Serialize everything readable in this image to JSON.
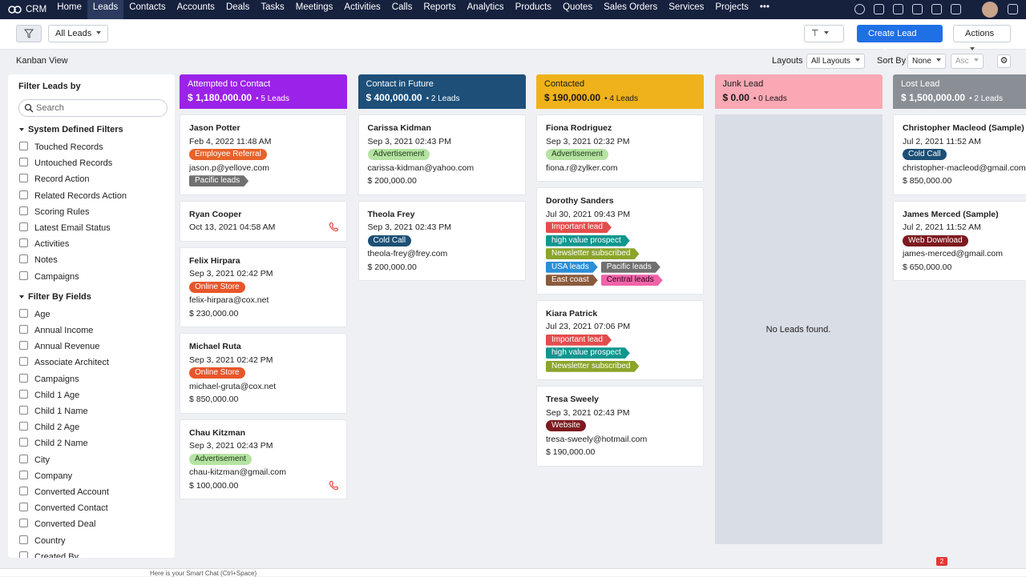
{
  "nav": {
    "brand": "CRM",
    "items": [
      "Home",
      "Leads",
      "Contacts",
      "Accounts",
      "Deals",
      "Tasks",
      "Meetings",
      "Activities",
      "Calls",
      "Reports",
      "Analytics",
      "Products",
      "Quotes",
      "Sales Orders",
      "Services",
      "Projects"
    ],
    "active": 1,
    "more": "•••"
  },
  "toolbar": {
    "view": "All Leads",
    "create": "Create Lead",
    "actions": "Actions"
  },
  "subbar": {
    "title": "Kanban View",
    "layouts_label": "Layouts",
    "layout": "All Layouts",
    "sort_label": "Sort By",
    "sort": "None",
    "order": "Asc"
  },
  "sidebar": {
    "title": "Filter Leads by",
    "search": "Search",
    "groups": [
      {
        "title": "System Defined Filters",
        "items": [
          "Touched Records",
          "Untouched Records",
          "Record Action",
          "Related Records Action",
          "Scoring Rules",
          "Latest Email Status",
          "Activities",
          "Notes",
          "Campaigns"
        ]
      },
      {
        "title": "Filter By Fields",
        "items": [
          "Age",
          "Annual Income",
          "Annual Revenue",
          "Associate Architect",
          "Campaigns",
          "Child 1 Age",
          "Child 1 Name",
          "Child 2 Age",
          "Child 2 Name",
          "City",
          "Company",
          "Converted Account",
          "Converted Contact",
          "Converted Deal",
          "Country",
          "Created By"
        ]
      }
    ]
  },
  "columns": [
    {
      "title": "Attempted to Contact",
      "amount": "$ 1,180,000.00",
      "count": "5 Leads",
      "color": "#9b22e8",
      "text_color": "#ffffff",
      "cards": [
        {
          "name": "Jason Potter",
          "rows": [
            "Feb 4, 2022 11:48 AM",
            [
              {
                "text": "Employee Referral",
                "color": "#e8622a",
                "shape": "pill"
              }
            ],
            "jason.p@yellove.com",
            [
              {
                "text": "Pacific leads",
                "color": "#707070",
                "shape": "arrow"
              }
            ]
          ]
        },
        {
          "name": "Ryan Cooper",
          "rows": [
            "Oct 13, 2021 04:58 AM"
          ],
          "phone": true
        },
        {
          "name": "Felix Hirpara",
          "rows": [
            "Sep 3, 2021 02:42 PM",
            [
              {
                "text": "Online Store",
                "color": "#e8562a",
                "shape": "pill"
              }
            ],
            "felix-hirpara@cox.net",
            "$ 230,000.00"
          ]
        },
        {
          "name": "Michael Ruta",
          "rows": [
            "Sep 3, 2021 02:42 PM",
            [
              {
                "text": "Online Store",
                "color": "#e8562a",
                "shape": "pill"
              }
            ],
            "michael-gruta@cox.net",
            "$ 850,000.00"
          ]
        },
        {
          "name": "Chau Kitzman",
          "rows": [
            "Sep 3, 2021 02:43 PM",
            [
              {
                "text": "Advertisement",
                "color": "#b5e3a2",
                "text_color": "#1f3a17",
                "shape": "pill"
              }
            ],
            "chau-kitzman@gmail.com",
            "$ 100,000.00"
          ],
          "phone": true
        }
      ]
    },
    {
      "title": "Contact in Future",
      "amount": "$ 400,000.00",
      "count": "2 Leads",
      "color": "#1d4f79",
      "text_color": "#ffffff",
      "cards": [
        {
          "name": "Carissa Kidman",
          "rows": [
            "Sep 3, 2021 02:43 PM",
            [
              {
                "text": "Advertisement",
                "color": "#b5e3a2",
                "text_color": "#1f3a17",
                "shape": "pill"
              }
            ],
            "carissa-kidman@yahoo.com",
            "$ 200,000.00"
          ]
        },
        {
          "name": "Theola Frey",
          "rows": [
            "Sep 3, 2021 02:43 PM",
            [
              {
                "text": "Cold Call",
                "color": "#1c4f75",
                "shape": "pill"
              }
            ],
            "theola-frey@frey.com",
            "$ 200,000.00"
          ]
        }
      ]
    },
    {
      "title": "Contacted",
      "amount": "$ 190,000.00",
      "count": "4 Leads",
      "color": "#efb21b",
      "text_color": "#1a1a1a",
      "cards": [
        {
          "name": "Fiona Rodriguez",
          "rows": [
            "Sep 3, 2021 02:32 PM",
            [
              {
                "text": "Advertisement",
                "color": "#b5e3a2",
                "text_color": "#1f3a17",
                "shape": "pill"
              }
            ],
            "fiona.r@zylker.com"
          ]
        },
        {
          "name": "Dorothy Sanders",
          "rows": [
            "Jul 30, 2021 09:43 PM",
            [
              {
                "text": "Important lead",
                "color": "#e44c4c",
                "shape": "arrow"
              }
            ],
            [
              {
                "text": "high value prospect",
                "color": "#11968f",
                "shape": "arrow"
              }
            ],
            [
              {
                "text": "Newsletter subscribed",
                "color": "#8ba42b",
                "shape": "arrow"
              }
            ],
            [
              {
                "text": "USA leads",
                "color": "#2a8fd8",
                "shape": "arrow"
              },
              {
                "text": "Pacific leads",
                "color": "#707070",
                "shape": "arrow"
              }
            ],
            [
              {
                "text": "East coast",
                "color": "#8b5a3c",
                "shape": "arrow"
              },
              {
                "text": "Central leads",
                "color": "#f062a8",
                "text_color": "#2a0a1a",
                "shape": "arrow"
              }
            ]
          ]
        },
        {
          "name": "Kiara Patrick",
          "rows": [
            "Jul 23, 2021 07:06 PM",
            [
              {
                "text": "Important lead",
                "color": "#e44c4c",
                "shape": "arrow"
              }
            ],
            [
              {
                "text": "high value prospect",
                "color": "#11968f",
                "shape": "arrow"
              }
            ],
            [
              {
                "text": "Newsletter subscribed",
                "color": "#8ba42b",
                "shape": "arrow"
              }
            ]
          ]
        },
        {
          "name": "Tresa Sweely",
          "rows": [
            "Sep 3, 2021 02:43 PM",
            [
              {
                "text": "Website",
                "color": "#7d1a1f",
                "shape": "pill"
              }
            ],
            "tresa-sweely@hotmail.com",
            "$ 190,000.00"
          ]
        }
      ]
    },
    {
      "title": "Junk Lead",
      "amount": "$ 0.00",
      "count": "0 Leads",
      "color": "#f9a8b4",
      "text_color": "#1a1a1a",
      "cards": [],
      "empty": "No Leads found."
    },
    {
      "title": "Lost Lead",
      "amount": "$ 1,500,000.00",
      "count": "2 Leads",
      "color": "#8a8f96",
      "text_color": "#ffffff",
      "cards": [
        {
          "name": "Christopher Macleod (Sample)",
          "rows": [
            "Jul 2, 2021 11:52 AM",
            [
              {
                "text": "Cold Call",
                "color": "#1c4f75",
                "shape": "pill"
              }
            ],
            "christopher-macleod@gmail.com",
            "$ 850,000.00"
          ]
        },
        {
          "name": "James Merced (Sample)",
          "rows": [
            "Jul 2, 2021 11:52 AM",
            [
              {
                "text": "Web Download",
                "color": "#7d1a1f",
                "shape": "pill"
              }
            ],
            "james-merced@gmail.com",
            "$ 650,000.00"
          ]
        }
      ]
    }
  ],
  "footer": {
    "chat": "Here is your Smart Chat (Ctrl+Space)",
    "badge": "2"
  }
}
